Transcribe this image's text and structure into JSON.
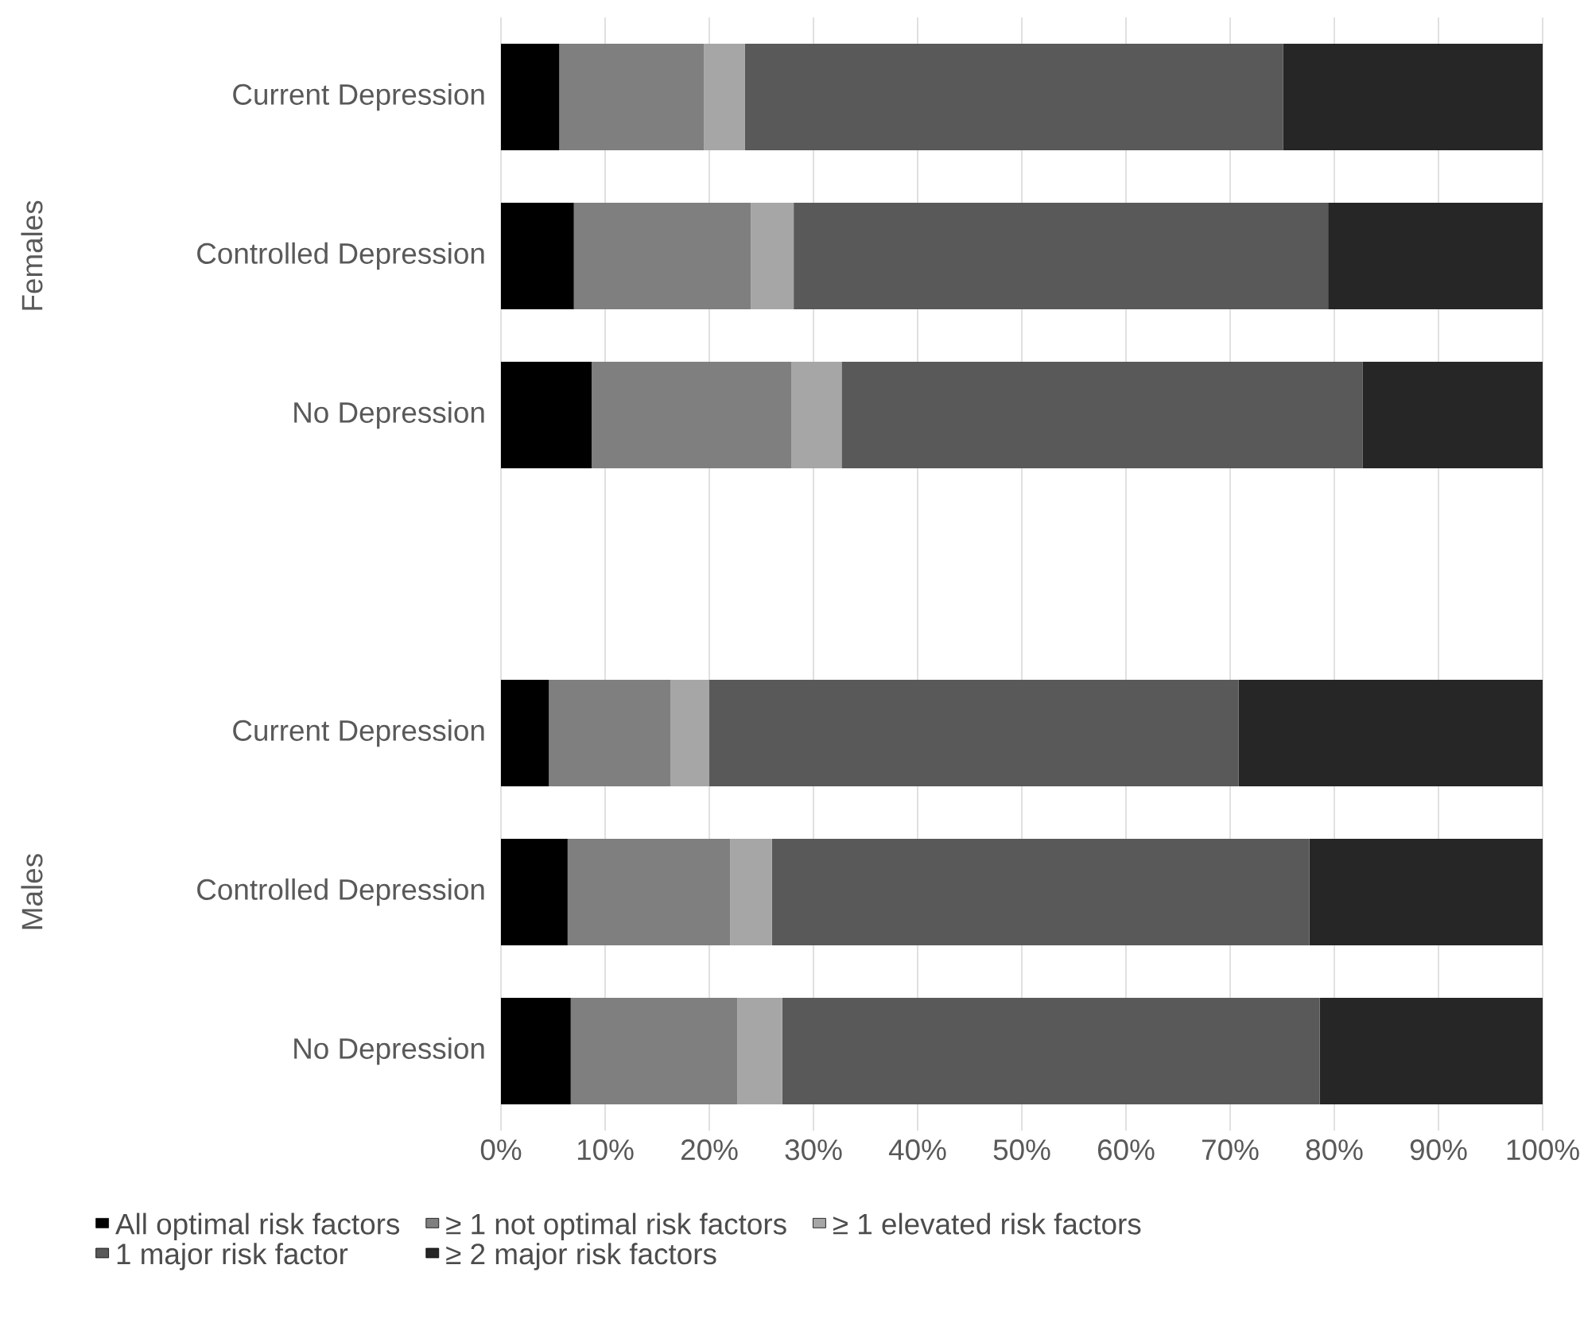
{
  "chart_data": {
    "type": "bar",
    "orientation": "horizontal",
    "stacked": true,
    "categories": [
      "Current Depression",
      "Controlled Depression",
      "No Depression",
      null,
      "Current Depression",
      "Controlled Depression",
      "No Depression"
    ],
    "series": [
      {
        "name": "All optimal risk factors",
        "color": "#000000",
        "values": [
          5.6,
          7.0,
          8.7,
          null,
          4.6,
          6.4,
          6.7
        ]
      },
      {
        "name": "≥ 1 not optimal risk factors",
        "color": "#7f7f7f",
        "values": [
          13.9,
          17.0,
          19.2,
          null,
          11.7,
          15.6,
          16.0
        ]
      },
      {
        "name": "≥ 1 elevated risk factors",
        "color": "#a6a6a6",
        "values": [
          3.9,
          4.1,
          4.8,
          null,
          3.7,
          4.0,
          4.3
        ]
      },
      {
        "name": "1 major risk factor",
        "color": "#595959",
        "values": [
          51.7,
          51.3,
          50.0,
          null,
          50.8,
          51.6,
          51.6
        ]
      },
      {
        "name": "≥ 2 major risk factors",
        "color": "#262626",
        "values": [
          24.9,
          20.6,
          17.3,
          null,
          29.2,
          22.4,
          21.4
        ]
      }
    ],
    "annotations": [
      "Females",
      "Males"
    ],
    "xlim": [
      0,
      100
    ],
    "xticks": [
      {
        "value": 0,
        "label": "0%"
      },
      {
        "value": 10,
        "label": "10%"
      },
      {
        "value": 20,
        "label": "20%"
      },
      {
        "value": 30,
        "label": "30%"
      },
      {
        "value": 40,
        "label": "40%"
      },
      {
        "value": 50,
        "label": "50%"
      },
      {
        "value": 60,
        "label": "60%"
      },
      {
        "value": 70,
        "label": "70%"
      },
      {
        "value": 80,
        "label": "80%"
      },
      {
        "value": 90,
        "label": "90%"
      },
      {
        "value": 100,
        "label": "100%"
      }
    ],
    "grid": "x",
    "legend": "bottom"
  }
}
